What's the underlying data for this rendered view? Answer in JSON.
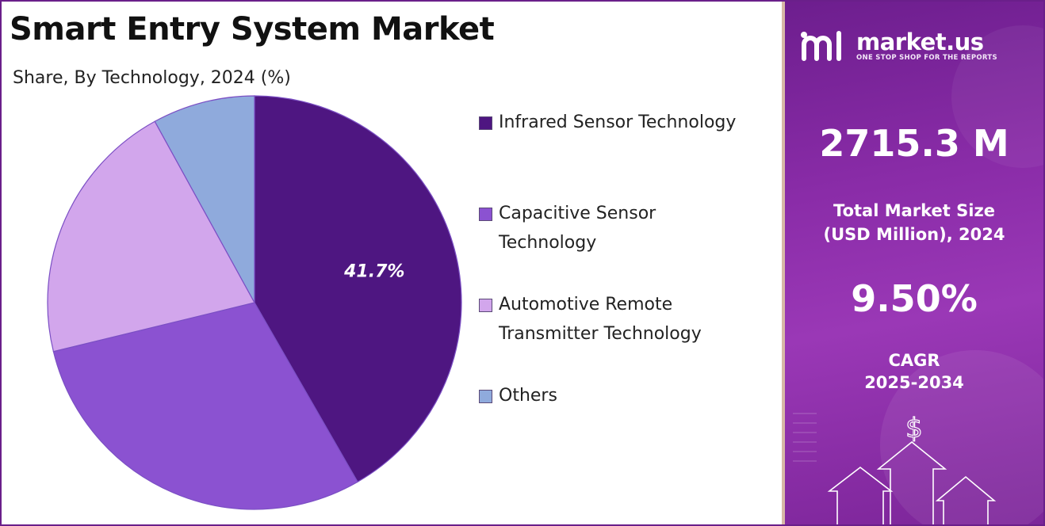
{
  "colors": {
    "brand_purple": "#7a2599",
    "infrared": "#4e1681",
    "capacitive": "#8b52d1",
    "automotive": "#d2a6ec",
    "others": "#8faadc"
  },
  "chart_data": {
    "type": "pie",
    "title": "Smart Entry System Market",
    "subtitle": "Share, By Technology, 2024 (%)",
    "slices": [
      {
        "name": "Infrared Sensor Technology",
        "value": 41.7,
        "label": "41.7%",
        "color": "#4e1681"
      },
      {
        "name": "Capacitive Sensor Technology",
        "value": 29.5,
        "label": "",
        "color": "#8b52d1"
      },
      {
        "name": "Automotive Remote Transmitter Technology",
        "value": 20.8,
        "label": "",
        "color": "#d2a6ec"
      },
      {
        "name": "Others",
        "value": 8.0,
        "label": "",
        "color": "#8faadc"
      }
    ],
    "legend_position": "right"
  },
  "legend": {
    "items": [
      {
        "label": "Infrared Sensor Technology",
        "color": "#4e1681"
      },
      {
        "label": " Capacitive Sensor Technology",
        "color": "#8b52d1"
      },
      {
        "label": " Automotive Remote Transmitter Technology",
        "color": "#d2a6ec"
      },
      {
        "label": " Others",
        "color": "#8faadc"
      }
    ]
  },
  "sidebar": {
    "logo_name": "market.us",
    "logo_tagline": "ONE STOP SHOP FOR THE REPORTS",
    "market_size_value": "2715.3 M",
    "market_size_label_line1": "Total Market Size",
    "market_size_label_line2": "(USD Million), 2024",
    "cagr_value": "9.50%",
    "cagr_label_line1": "CAGR",
    "cagr_label_line2": "2025-2034",
    "currency_symbol": "$"
  }
}
